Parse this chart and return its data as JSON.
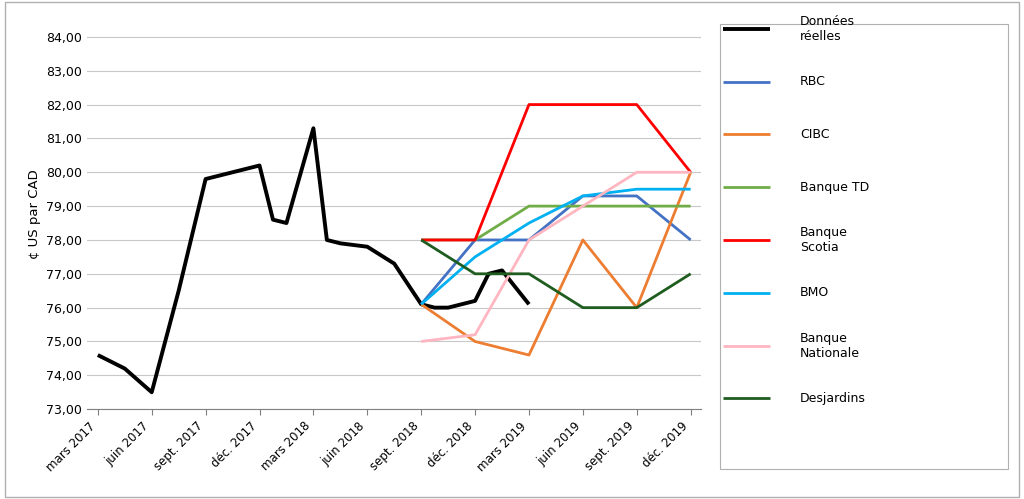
{
  "ylabel": "¢ US par CAD",
  "background_color": "#ffffff",
  "plot_bg_color": "#ffffff",
  "border_color": "#d0d0d0",
  "grid_color": "#c8c8c8",
  "x_labels": [
    "mars 2017",
    "juin 2017",
    "sept. 2017",
    "déc. 2017",
    "mars 2018",
    "juin 2018",
    "sept. 2018",
    "déc. 2018",
    "mars 2019",
    "juin 2019",
    "sept. 2019",
    "déc. 2019"
  ],
  "ylim": [
    73.0,
    84.5
  ],
  "series": {
    "Données\nréelles": {
      "color": "#000000",
      "linewidth": 2.8,
      "x_indices": [
        0,
        0.5,
        1,
        1.5,
        2,
        2.5,
        3,
        3.25,
        3.5,
        4,
        4.25,
        4.5,
        5,
        5.5,
        6,
        6.25,
        6.5,
        7,
        7.25,
        7.5,
        8
      ],
      "y": [
        74.6,
        74.2,
        73.5,
        76.5,
        79.8,
        80.0,
        80.2,
        78.6,
        78.5,
        81.3,
        78.0,
        77.9,
        77.8,
        77.3,
        76.1,
        76.0,
        76.0,
        76.2,
        77.0,
        77.1,
        76.1
      ]
    },
    "RBC": {
      "color": "#4472c4",
      "linewidth": 2.0,
      "x_indices": [
        6,
        7,
        8,
        9,
        10,
        11
      ],
      "y": [
        76.1,
        78.0,
        78.0,
        79.3,
        79.3,
        78.0
      ]
    },
    "CIBC": {
      "color": "#ed7d31",
      "linewidth": 2.0,
      "x_indices": [
        6,
        7,
        8,
        9,
        10,
        11
      ],
      "y": [
        76.1,
        75.0,
        74.6,
        78.0,
        76.0,
        80.0
      ]
    },
    "Banque TD": {
      "color": "#70ad47",
      "linewidth": 2.0,
      "x_indices": [
        6,
        7,
        8,
        9,
        10,
        11
      ],
      "y": [
        78.0,
        78.0,
        79.0,
        79.0,
        79.0,
        79.0
      ]
    },
    "Banque\nScotia": {
      "color": "#ff0000",
      "linewidth": 2.0,
      "x_indices": [
        6,
        7,
        8,
        9,
        10,
        11
      ],
      "y": [
        78.0,
        78.0,
        82.0,
        82.0,
        82.0,
        80.0
      ]
    },
    "BMO": {
      "color": "#00b0f0",
      "linewidth": 2.0,
      "x_indices": [
        6,
        7,
        8,
        9,
        10,
        11
      ],
      "y": [
        76.1,
        77.5,
        78.5,
        79.3,
        79.5,
        79.5
      ]
    },
    "Banque\nNationale": {
      "color": "#ffb6c1",
      "linewidth": 2.0,
      "x_indices": [
        6,
        7,
        8,
        9,
        10,
        11
      ],
      "y": [
        75.0,
        75.2,
        78.0,
        79.0,
        80.0,
        80.0
      ]
    },
    "Desjardins": {
      "color": "#1f5c1f",
      "linewidth": 2.0,
      "x_indices": [
        6,
        7,
        8,
        9,
        10,
        11
      ],
      "y": [
        78.0,
        77.0,
        77.0,
        76.0,
        76.0,
        77.0
      ]
    }
  },
  "legend_order": [
    "Données\nréelles",
    "RBC",
    "CIBC",
    "Banque TD",
    "Banque\nScotia",
    "BMO",
    "Banque\nNationale",
    "Desjardins"
  ]
}
